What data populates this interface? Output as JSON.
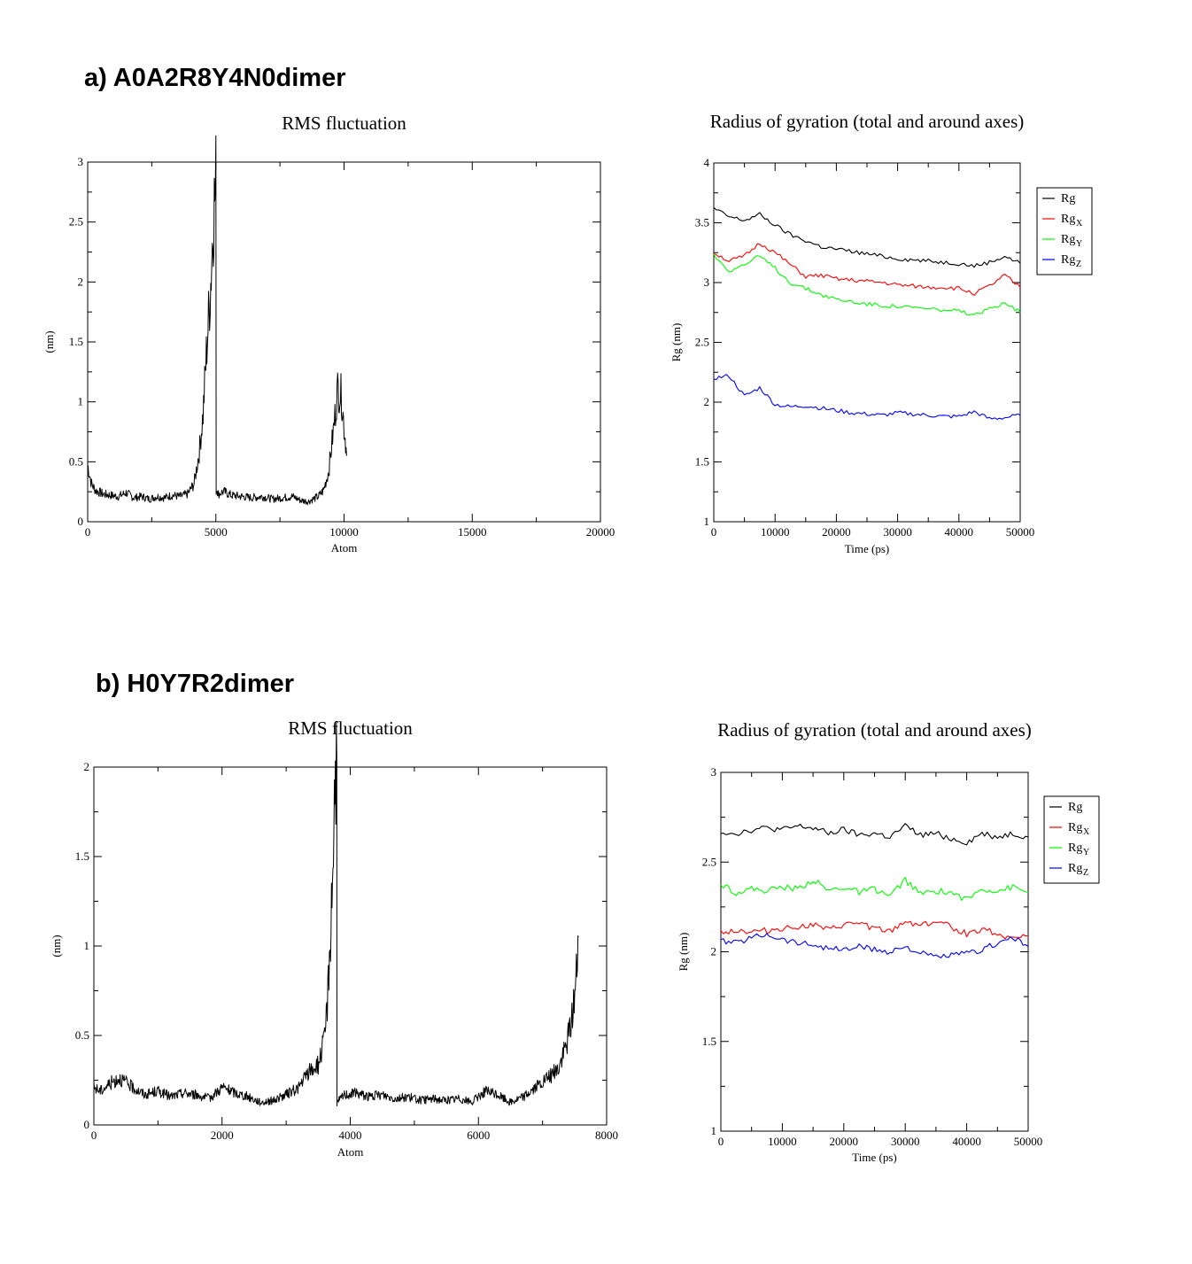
{
  "panels": [
    {
      "label": "a) A0A2R8Y4N0dimer"
    },
    {
      "label": "b) H0Y7R2dimer"
    }
  ],
  "chart_data": [
    {
      "id": "a-rmsf",
      "type": "line",
      "title": "RMS fluctuation",
      "xlabel": "Atom",
      "ylabel": "(nm)",
      "xlim": [
        0,
        20000
      ],
      "ylim": [
        0,
        3
      ],
      "xticks": [
        0,
        5000,
        10000,
        15000,
        20000
      ],
      "yticks": [
        0,
        0.5,
        1,
        1.5,
        2,
        2.5,
        3
      ],
      "tick_labels_x": [
        "0",
        "5000",
        "10000",
        "15000",
        "20000"
      ],
      "tick_labels_y": [
        "0",
        "0.5",
        "1",
        "1.5",
        "2",
        "2.5",
        "3"
      ],
      "series": [
        {
          "color": "#000000",
          "x": [
            0,
            150,
            300,
            600,
            900,
            1200,
            1500,
            1800,
            2100,
            2400,
            2700,
            3000,
            3300,
            3600,
            3900,
            4150,
            4350,
            4500,
            4650,
            4800,
            4900,
            5000,
            5050,
            5100,
            5300,
            5600,
            6000,
            6400,
            6800,
            7200,
            7600,
            8000,
            8300,
            8600,
            8800,
            9000,
            9200,
            9400,
            9600,
            9750,
            9900,
            10000,
            10100
          ],
          "y": [
            0.45,
            0.3,
            0.25,
            0.22,
            0.21,
            0.2,
            0.23,
            0.19,
            0.2,
            0.18,
            0.2,
            0.19,
            0.21,
            0.2,
            0.22,
            0.3,
            0.55,
            0.85,
            1.4,
            1.9,
            2.4,
            2.7,
            0.25,
            0.22,
            0.24,
            0.21,
            0.2,
            0.19,
            0.2,
            0.18,
            0.19,
            0.2,
            0.17,
            0.16,
            0.18,
            0.2,
            0.25,
            0.4,
            0.75,
            1.05,
            1.0,
            0.75,
            0.55
          ]
        }
      ]
    },
    {
      "id": "a-rg",
      "type": "line",
      "title": "Radius of gyration (total and around axes)",
      "xlabel": "Time (ps)",
      "ylabel": "Rg (nm)",
      "xlim": [
        0,
        50000
      ],
      "ylim": [
        1,
        4
      ],
      "xticks": [
        0,
        10000,
        20000,
        30000,
        40000,
        50000
      ],
      "yticks": [
        1,
        1.5,
        2,
        2.5,
        3,
        3.5,
        4
      ],
      "tick_labels_x": [
        "0",
        "10000",
        "20000",
        "30000",
        "40000",
        "50000"
      ],
      "tick_labels_y": [
        "1",
        "1.5",
        "2",
        "2.5",
        "3",
        "3.5",
        "4"
      ],
      "legend_position": "outside-top-right",
      "series": [
        {
          "name": "Rg",
          "subscript": "",
          "color": "#000000",
          "x": [
            0,
            2500,
            5000,
            7500,
            10000,
            12500,
            15000,
            17500,
            20000,
            22500,
            25000,
            27500,
            30000,
            32500,
            35000,
            37500,
            40000,
            42500,
            45000,
            47500,
            50000
          ],
          "y": [
            3.62,
            3.55,
            3.52,
            3.57,
            3.48,
            3.4,
            3.35,
            3.3,
            3.28,
            3.26,
            3.24,
            3.22,
            3.2,
            3.19,
            3.18,
            3.17,
            3.16,
            3.14,
            3.17,
            3.22,
            3.16
          ]
        },
        {
          "name": "Rg",
          "subscript": "X",
          "color": "#ff0000",
          "x": [
            0,
            2500,
            5000,
            7500,
            10000,
            12500,
            15000,
            17500,
            20000,
            22500,
            25000,
            27500,
            30000,
            32500,
            35000,
            37500,
            40000,
            42500,
            45000,
            47500,
            50000
          ],
          "y": [
            3.25,
            3.18,
            3.22,
            3.33,
            3.25,
            3.15,
            3.05,
            3.06,
            3.03,
            3.02,
            3.01,
            3.0,
            2.98,
            2.97,
            2.96,
            2.96,
            2.95,
            2.91,
            2.97,
            3.06,
            2.96
          ]
        },
        {
          "name": "Rg",
          "subscript": "Y",
          "color": "#00ff00",
          "x": [
            0,
            2500,
            5000,
            7500,
            10000,
            12500,
            15000,
            17500,
            20000,
            22500,
            25000,
            27500,
            30000,
            32500,
            35000,
            37500,
            40000,
            42500,
            45000,
            47500,
            50000
          ],
          "y": [
            3.23,
            3.1,
            3.15,
            3.22,
            3.12,
            3.0,
            2.95,
            2.9,
            2.86,
            2.84,
            2.82,
            2.81,
            2.8,
            2.79,
            2.78,
            2.77,
            2.76,
            2.72,
            2.78,
            2.84,
            2.75
          ]
        },
        {
          "name": "Rg",
          "subscript": "Z",
          "color": "#0000ff",
          "x": [
            0,
            2500,
            5000,
            7500,
            10000,
            12500,
            15000,
            17500,
            20000,
            22500,
            25000,
            27500,
            30000,
            32500,
            35000,
            37500,
            40000,
            42500,
            45000,
            47500,
            50000
          ],
          "y": [
            2.2,
            2.22,
            2.05,
            2.12,
            1.98,
            1.96,
            1.97,
            1.95,
            1.93,
            1.91,
            1.9,
            1.89,
            1.91,
            1.9,
            1.89,
            1.88,
            1.88,
            1.92,
            1.86,
            1.87,
            1.89
          ]
        }
      ]
    },
    {
      "id": "b-rmsf",
      "type": "line",
      "title": "RMS fluctuation",
      "xlabel": "Atom",
      "ylabel": "(nm)",
      "xlim": [
        0,
        8000
      ],
      "ylim": [
        0,
        2
      ],
      "xticks": [
        0,
        2000,
        4000,
        6000,
        8000
      ],
      "yticks": [
        0,
        0.5,
        1,
        1.5,
        2
      ],
      "tick_labels_x": [
        "0",
        "2000",
        "4000",
        "6000",
        "8000"
      ],
      "tick_labels_y": [
        "0",
        "0.5",
        "1",
        "1.5",
        "2"
      ],
      "series": [
        {
          "color": "#000000",
          "x": [
            0,
            100,
            250,
            400,
            600,
            800,
            1000,
            1200,
            1400,
            1600,
            1800,
            2000,
            2200,
            2400,
            2600,
            2800,
            3000,
            3200,
            3350,
            3500,
            3600,
            3650,
            3700,
            3730,
            3760,
            3790,
            3800,
            3900,
            4100,
            4300,
            4500,
            4700,
            4900,
            5100,
            5300,
            5500,
            5700,
            5900,
            6100,
            6300,
            6500,
            6700,
            6900,
            7100,
            7250,
            7350,
            7450,
            7520,
            7560
          ],
          "y": [
            0.2,
            0.18,
            0.22,
            0.25,
            0.2,
            0.16,
            0.18,
            0.15,
            0.17,
            0.16,
            0.14,
            0.2,
            0.17,
            0.15,
            0.12,
            0.13,
            0.16,
            0.2,
            0.28,
            0.32,
            0.45,
            0.7,
            1.1,
            1.4,
            1.8,
            1.85,
            0.12,
            0.16,
            0.17,
            0.15,
            0.16,
            0.14,
            0.15,
            0.13,
            0.14,
            0.13,
            0.14,
            0.12,
            0.18,
            0.16,
            0.12,
            0.15,
            0.2,
            0.25,
            0.3,
            0.4,
            0.55,
            0.75,
            1.05
          ]
        }
      ]
    },
    {
      "id": "b-rg",
      "type": "line",
      "title": "Radius of gyration (total and around axes)",
      "xlabel": "Time (ps)",
      "ylabel": "Rg (nm)",
      "xlim": [
        0,
        50000
      ],
      "ylim": [
        1,
        3
      ],
      "xticks": [
        0,
        10000,
        20000,
        30000,
        40000,
        50000
      ],
      "yticks": [
        1,
        1.5,
        2,
        2.5,
        3
      ],
      "tick_labels_x": [
        "0",
        "10000",
        "20000",
        "30000",
        "40000",
        "50000"
      ],
      "tick_labels_y": [
        "1",
        "1.5",
        "2",
        "2.5",
        "3"
      ],
      "legend_position": "outside-top-right",
      "series": [
        {
          "name": "Rg",
          "subscript": "",
          "color": "#000000",
          "x": [
            0,
            2500,
            5000,
            7500,
            10000,
            12500,
            15000,
            17500,
            20000,
            22500,
            25000,
            27500,
            30000,
            32500,
            35000,
            37500,
            40000,
            42500,
            45000,
            47500,
            50000
          ],
          "y": [
            2.67,
            2.66,
            2.68,
            2.69,
            2.68,
            2.7,
            2.69,
            2.66,
            2.68,
            2.65,
            2.66,
            2.64,
            2.7,
            2.65,
            2.66,
            2.63,
            2.61,
            2.66,
            2.64,
            2.66,
            2.64
          ]
        },
        {
          "name": "Rg",
          "subscript": "X",
          "color": "#ff0000",
          "x": [
            0,
            2500,
            5000,
            7500,
            10000,
            12500,
            15000,
            17500,
            20000,
            22500,
            25000,
            27500,
            30000,
            32500,
            35000,
            37500,
            40000,
            42500,
            45000,
            47500,
            50000
          ],
          "y": [
            2.11,
            2.12,
            2.11,
            2.12,
            2.13,
            2.14,
            2.15,
            2.12,
            2.15,
            2.16,
            2.13,
            2.11,
            2.17,
            2.15,
            2.17,
            2.14,
            2.1,
            2.13,
            2.1,
            2.08,
            2.09
          ]
        },
        {
          "name": "Rg",
          "subscript": "Y",
          "color": "#00ff00",
          "x": [
            0,
            2500,
            5000,
            7500,
            10000,
            12500,
            15000,
            17500,
            20000,
            22500,
            25000,
            27500,
            30000,
            32500,
            35000,
            37500,
            40000,
            42500,
            45000,
            47500,
            50000
          ],
          "y": [
            2.38,
            2.33,
            2.35,
            2.34,
            2.36,
            2.35,
            2.4,
            2.34,
            2.36,
            2.33,
            2.35,
            2.31,
            2.4,
            2.32,
            2.34,
            2.33,
            2.29,
            2.35,
            2.34,
            2.36,
            2.33
          ]
        },
        {
          "name": "Rg",
          "subscript": "Z",
          "color": "#0000ff",
          "x": [
            0,
            2500,
            5000,
            7500,
            10000,
            12500,
            15000,
            17500,
            20000,
            22500,
            25000,
            27500,
            30000,
            32500,
            35000,
            37500,
            40000,
            42500,
            45000,
            47500,
            50000
          ],
          "y": [
            2.06,
            2.05,
            2.08,
            2.1,
            2.07,
            2.05,
            2.04,
            2.02,
            2.01,
            2.03,
            2.01,
            2.0,
            2.03,
            1.99,
            1.97,
            1.98,
            1.99,
            2.01,
            2.05,
            2.08,
            2.03
          ]
        }
      ]
    }
  ]
}
